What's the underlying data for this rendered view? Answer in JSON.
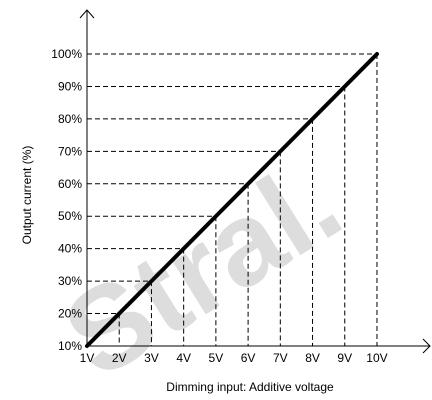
{
  "chart_data": {
    "type": "line",
    "xlabel": "Dimming input: Additive voltage",
    "ylabel": "Output current (%)",
    "x_ticks": [
      "1V",
      "2V",
      "3V",
      "4V",
      "5V",
      "6V",
      "7V",
      "8V",
      "9V",
      "10V"
    ],
    "y_ticks": [
      "10%",
      "20%",
      "30%",
      "40%",
      "50%",
      "60%",
      "70%",
      "80%",
      "90%",
      "100%"
    ],
    "xlim": [
      1,
      10
    ],
    "ylim": [
      10,
      100
    ],
    "grid": "dashed guide lines to each data point",
    "series": [
      {
        "x": [
          1,
          2,
          3,
          4,
          5,
          6,
          7,
          8,
          9,
          10
        ],
        "y": [
          10,
          20,
          30,
          40,
          50,
          60,
          70,
          80,
          90,
          100
        ]
      }
    ],
    "colors": {
      "line": "#000000",
      "axis": "#000000",
      "watermark": "#bdbdbd"
    }
  },
  "watermark": "Stral."
}
